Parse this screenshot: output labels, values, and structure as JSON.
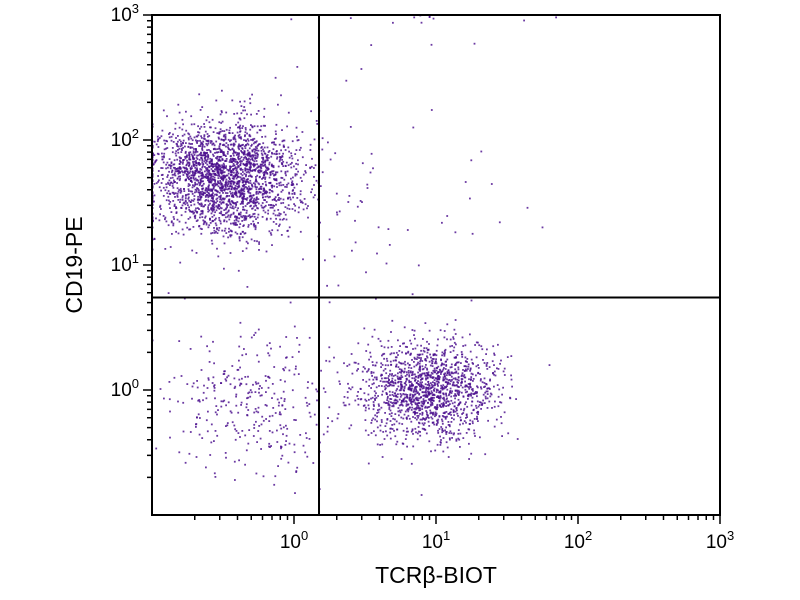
{
  "page": {
    "background": "#ffffff"
  },
  "chart_data": {
    "type": "scatter",
    "subtype": "flow-cytometry-dot-plot",
    "title": "",
    "xlabel": "TCRβ-BIOT",
    "ylabel": "CD19-PE",
    "x_scale": "log",
    "y_scale": "log",
    "x_range": [
      0.1,
      1000
    ],
    "y_range": [
      0.1,
      1000
    ],
    "x_ticks": [
      {
        "value": 1,
        "base": "10",
        "exp": "0"
      },
      {
        "value": 10,
        "base": "10",
        "exp": "1"
      },
      {
        "value": 100,
        "base": "10",
        "exp": "2"
      },
      {
        "value": 1000,
        "base": "10",
        "exp": "3"
      }
    ],
    "y_ticks": [
      {
        "value": 1,
        "base": "10",
        "exp": "0"
      },
      {
        "value": 10,
        "base": "10",
        "exp": "1"
      },
      {
        "value": 100,
        "base": "10",
        "exp": "2"
      },
      {
        "value": 1000,
        "base": "10",
        "exp": "3"
      }
    ],
    "minor_tick_multiples": [
      2,
      3,
      4,
      5,
      6,
      7,
      8,
      9
    ],
    "grid": false,
    "legend": null,
    "frame_color": "#000000",
    "point_color": "#4b0f8e",
    "point_size": 1.8,
    "point_opacity": 0.82,
    "seed": 1337,
    "quadrant_gate": {
      "x": 1.5,
      "y": 5.5,
      "color": "#000000",
      "line_width": 2
    },
    "populations": [
      {
        "name": "CD19+ B cells (upper left)",
        "center": [
          0.33,
          50
        ],
        "sigma_log": [
          0.27,
          0.22
        ],
        "count": 2400
      },
      {
        "name": "TCRb+ T cells (lower right)",
        "center": [
          8.8,
          1.0
        ],
        "sigma_log": [
          0.24,
          0.2
        ],
        "count": 1500
      },
      {
        "name": "double negative (lower left)",
        "center": [
          0.5,
          0.8
        ],
        "sigma_log": [
          0.3,
          0.28
        ],
        "count": 330
      },
      {
        "name": "sparse double positive",
        "center": [
          4.0,
          35
        ],
        "sigma_log": [
          0.55,
          0.48
        ],
        "count": 55
      },
      {
        "name": "off scale top events",
        "center": [
          9.0,
          950
        ],
        "sigma_log": [
          0.35,
          0.02
        ],
        "count": 10
      },
      {
        "name": "stray high events",
        "center": [
          7.0,
          650
        ],
        "sigma_log": [
          0.3,
          0.1
        ],
        "count": 3
      }
    ]
  }
}
